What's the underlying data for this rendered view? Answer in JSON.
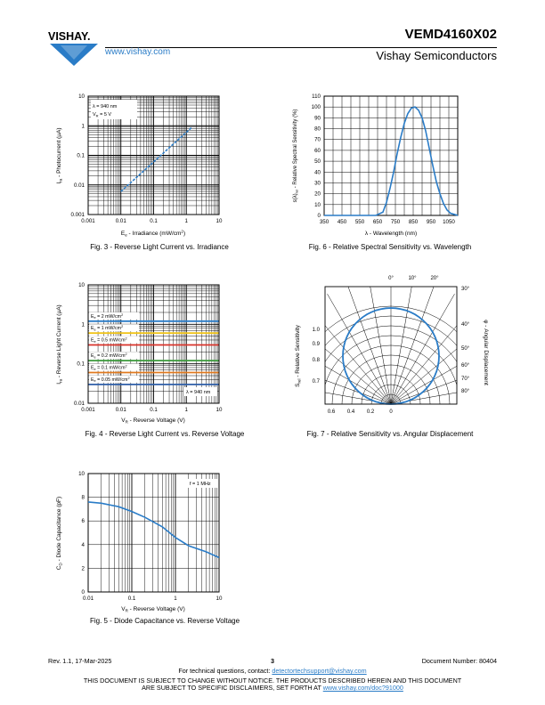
{
  "header": {
    "logo_text": "VISHAY.",
    "website": "www.vishay.com",
    "part_number": "VEMD4160X02",
    "company": "Vishay Semiconductors",
    "brand_color": "#2a7cc7"
  },
  "charts": {
    "fig3": {
      "caption": "Fig. 3 - Reverse Light Current vs. Irradiance",
      "ylabel_parts": [
        "I",
        "ra",
        " - Photocurrent (µA)"
      ],
      "xlabel_parts": [
        "E",
        "e",
        " - Irradiance (mW/cm",
        "2",
        ")"
      ],
      "yticks": [
        "0.001",
        "0.01",
        "0.1",
        "1",
        "10"
      ],
      "xticks": [
        "0.001",
        "0.01",
        "0.1",
        "1",
        "10"
      ],
      "legend": [
        {
          "pre": "",
          "sub": "",
          "text": "λ = 940 nm"
        },
        {
          "pre": "V",
          "sub": "R",
          "text": " = 5 V"
        }
      ]
    },
    "fig6": {
      "caption": "Fig. 6 - Relative Spectral Sensitivity vs. Wavelength",
      "ylabel_parts": [
        "s(λ)",
        "rel",
        " - Relative Spectral Sensitivity (%)"
      ],
      "xlabel": "λ - Wavelength (nm)",
      "yticks": [
        "0",
        "10",
        "20",
        "30",
        "40",
        "50",
        "60",
        "70",
        "80",
        "90",
        "100",
        "110"
      ],
      "xticks": [
        "350",
        "450",
        "550",
        "650",
        "750",
        "850",
        "950",
        "1050"
      ]
    },
    "fig4": {
      "caption": "Fig. 4 -  Reverse Light Current vs. Reverse Voltage",
      "ylabel_parts": [
        "I",
        "ra",
        " - Reverse Light Current (µA)"
      ],
      "xlabel_parts": [
        "V",
        "R",
        " - Reverse Voltage (V)"
      ],
      "yticks": [
        "0.01",
        "0.1",
        "1",
        "10"
      ],
      "xticks": [
        "0.001",
        "0.01",
        "0.1",
        "1",
        "10"
      ],
      "annotation": "λ = 940 nm"
    },
    "fig7": {
      "caption": "Fig. 7 - Relative Sensitivity vs. Angular Displacement",
      "ylabel_parts": [
        "S",
        "rel",
        " - Relative Sensitivity"
      ],
      "ylabel2": "φ - Angular Displacement",
      "top_angles": [
        "0°",
        "10°",
        "20°"
      ],
      "right_angles": [
        "30°",
        "40°",
        "50°",
        "60°",
        "70°",
        "80°"
      ],
      "left_ticks": [
        "1.0",
        "0.9",
        "0.8",
        "0.7"
      ],
      "bottom_ticks": [
        "0.6",
        "0.4",
        "0.2",
        "0"
      ]
    },
    "fig5": {
      "caption": "Fig. 5 - Diode Capacitance vs. Reverse Voltage",
      "ylabel_parts": [
        "C",
        "D",
        " - Diode Capacitance (pF)"
      ],
      "xlabel_parts": [
        "V",
        "R",
        " - Reverse Voltage (V)"
      ],
      "yticks": [
        "0",
        "2",
        "4",
        "6",
        "8",
        "10"
      ],
      "xticks": [
        "0.01",
        "0.1",
        "1",
        "10"
      ],
      "annotation": "f = 1 MHz"
    }
  },
  "chart_data": [
    {
      "type": "line",
      "id": "fig3",
      "title": "Fig. 3 - Reverse Light Current vs. Irradiance",
      "xlabel": "Ee - Irradiance (mW/cm2)",
      "ylabel": "Ira - Photocurrent (µA)",
      "xscale": "log",
      "yscale": "log",
      "xlim": [
        0.001,
        10
      ],
      "ylim": [
        0.001,
        10
      ],
      "grid": true,
      "x": [
        0.01,
        0.03,
        0.1,
        0.3,
        1,
        1.5
      ],
      "y": [
        0.006,
        0.018,
        0.06,
        0.18,
        0.6,
        0.9
      ]
    },
    {
      "type": "line",
      "id": "fig6",
      "title": "Fig. 6 - Relative Spectral Sensitivity vs. Wavelength",
      "xlabel": "λ - Wavelength (nm)",
      "ylabel": "s(λ)rel - Relative Spectral Sensitivity (%)",
      "xlim": [
        350,
        1100
      ],
      "ylim": [
        0,
        110
      ],
      "grid": true,
      "x": [
        350,
        640,
        680,
        700,
        720,
        740,
        760,
        780,
        800,
        820,
        840,
        860,
        880,
        900,
        920,
        940,
        960,
        980,
        1000,
        1020,
        1040,
        1060,
        1080,
        1100
      ],
      "y": [
        0,
        0,
        3,
        12,
        25,
        40,
        57,
        72,
        85,
        94,
        99,
        100,
        97,
        90,
        78,
        62,
        46,
        31,
        20,
        11,
        5,
        2,
        1,
        0
      ]
    },
    {
      "type": "line",
      "id": "fig4",
      "title": "Fig. 4 - Reverse Light Current vs. Reverse Voltage",
      "xlabel": "VR - Reverse Voltage (V)",
      "ylabel": "Ira - Reverse Light Current (µA)",
      "xscale": "log",
      "yscale": "log",
      "xlim": [
        0.001,
        10
      ],
      "ylim": [
        0.01,
        10
      ],
      "grid": true,
      "annotation": "λ = 940 nm",
      "series": [
        {
          "name": "Ee = 2 mW/cm2",
          "values": [
            1.2,
            1.2
          ],
          "color": "#2a7cc7"
        },
        {
          "name": "Ee = 1 mW/cm2",
          "values": [
            0.6,
            0.6
          ],
          "color": "#f0c419"
        },
        {
          "name": "Ee = 0.5 mW/cm2",
          "values": [
            0.3,
            0.3
          ],
          "color": "#d9342b"
        },
        {
          "name": "Ee = 0.2 mW/cm2",
          "values": [
            0.12,
            0.12
          ],
          "color": "#3c9a3c"
        },
        {
          "name": "Ee = 0.1 mW/cm2",
          "values": [
            0.06,
            0.06
          ],
          "color": "#e07a1f"
        },
        {
          "name": "Ee = 0.05 mW/cm2",
          "values": [
            0.03,
            0.03
          ],
          "color": "#2f5fa8"
        }
      ],
      "x": [
        0.001,
        10
      ]
    },
    {
      "type": "line",
      "id": "fig7",
      "title": "Fig. 7 - Relative Sensitivity vs. Angular Displacement",
      "xlabel": "",
      "ylabel": "Srel - Relative Sensitivity",
      "polar": true,
      "x": [
        0,
        10,
        20,
        30,
        40,
        50,
        60,
        70,
        80,
        90
      ],
      "y": [
        1.0,
        0.985,
        0.94,
        0.866,
        0.766,
        0.643,
        0.5,
        0.342,
        0.174,
        0
      ]
    },
    {
      "type": "line",
      "id": "fig5",
      "title": "Fig. 5 - Diode Capacitance vs. Reverse Voltage",
      "xlabel": "VR - Reverse Voltage (V)",
      "ylabel": "CD - Diode Capacitance (pF)",
      "xscale": "log",
      "xlim": [
        0.01,
        10
      ],
      "ylim": [
        0,
        10
      ],
      "grid": true,
      "annotation": "f = 1 MHz",
      "x": [
        0.01,
        0.02,
        0.05,
        0.1,
        0.2,
        0.5,
        1,
        2,
        5,
        10
      ],
      "y": [
        7.6,
        7.5,
        7.2,
        6.8,
        6.3,
        5.5,
        4.6,
        3.9,
        3.4,
        2.9
      ]
    }
  ],
  "footer": {
    "revision": "Rev. 1.1, 17-Mar-2025",
    "page": "3",
    "doc_number": "Document Number: 80404",
    "contact_prefix": "For technical questions, contact: ",
    "contact_email": "detectortechsupport@vishay.com",
    "disclaimer1": "THIS DOCUMENT IS SUBJECT TO CHANGE WITHOUT NOTICE. THE PRODUCTS DESCRIBED HEREIN AND THIS DOCUMENT",
    "disclaimer2_prefix": "ARE SUBJECT TO SPECIFIC DISCLAIMERS, SET FORTH AT ",
    "disclaimer2_link": "www.vishay.com/doc?91000"
  }
}
